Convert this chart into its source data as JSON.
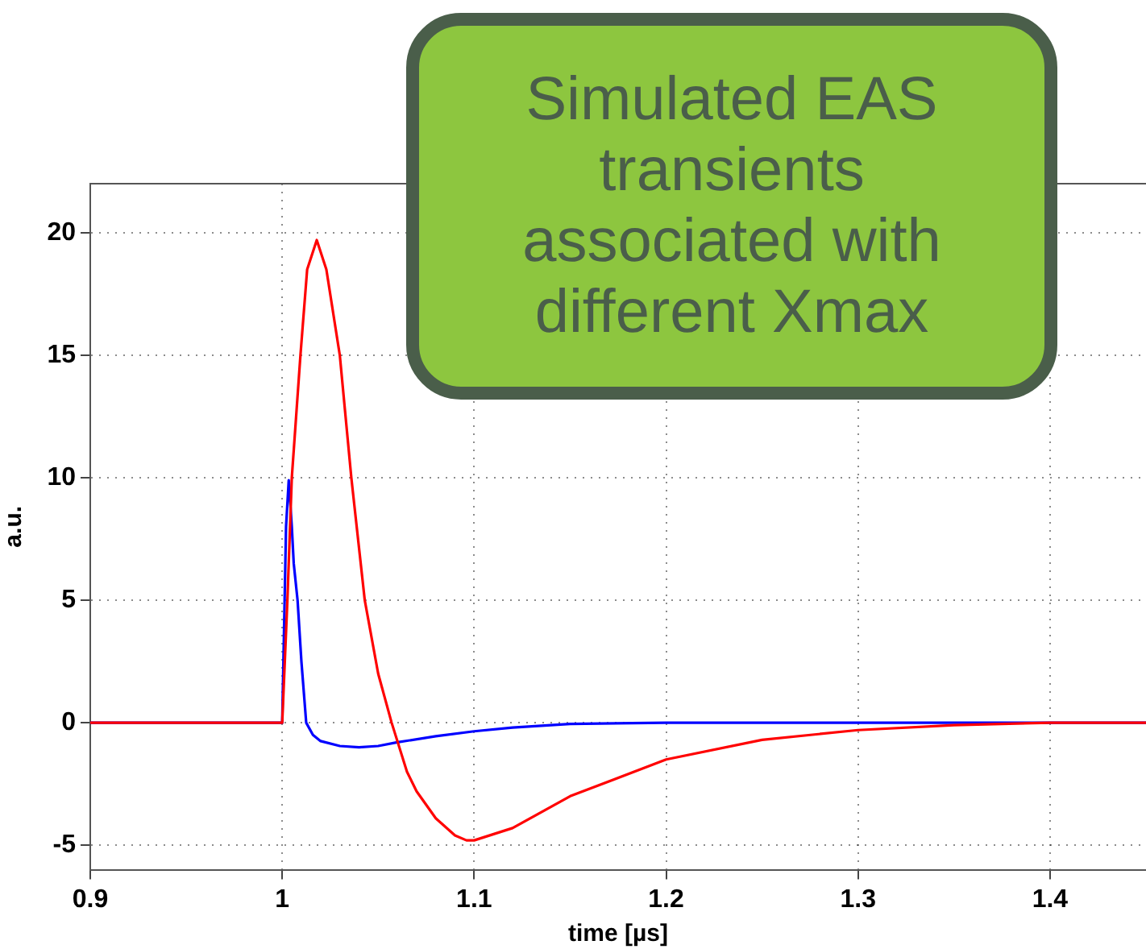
{
  "chart_data": {
    "type": "line",
    "xlabel": "time [µs]",
    "ylabel": "a.u.",
    "xlim": [
      0.9,
      1.45
    ],
    "xticks": [
      0.9,
      1,
      1.1,
      1.2,
      1.3,
      1.4
    ],
    "ylim": [
      -6,
      22
    ],
    "yticks": [
      -5,
      0,
      5,
      10,
      15,
      20
    ],
    "grid": true,
    "legend": false,
    "marker": "none",
    "line_style": "solid",
    "annotations": [
      "Simulated EAS transients associated with different Xmax"
    ],
    "series": [
      {
        "color": "#0000ff",
        "x": [
          0.9,
          1.0,
          1.001,
          1.002,
          1.0034,
          1.005,
          1.006,
          1.008,
          1.01,
          1.0125,
          1.016,
          1.02,
          1.03,
          1.04,
          1.05,
          1.06,
          1.08,
          1.1,
          1.12,
          1.15,
          1.2,
          1.3,
          1.45
        ],
        "values": [
          0,
          0,
          4,
          8,
          9.9,
          8,
          6.5,
          5,
          2.5,
          0,
          -0.5,
          -0.75,
          -0.95,
          -1,
          -0.95,
          -0.8,
          -0.55,
          -0.35,
          -0.2,
          -0.05,
          0,
          0,
          0
        ]
      },
      {
        "color": "#ff0000",
        "x": [
          0.9,
          1.0,
          1.0027,
          1.005,
          1.0095,
          1.013,
          1.018,
          1.023,
          1.03,
          1.036,
          1.043,
          1.05,
          1.057,
          1.065,
          1.07,
          1.08,
          1.09,
          1.096,
          1.1,
          1.12,
          1.15,
          1.2,
          1.25,
          1.3,
          1.35,
          1.4,
          1.45
        ],
        "values": [
          0,
          0,
          5,
          10,
          15,
          18.5,
          19.7,
          18.5,
          15,
          10,
          5,
          2,
          0,
          -2,
          -2.8,
          -3.9,
          -4.6,
          -4.8,
          -4.8,
          -4.3,
          -3,
          -1.5,
          -0.7,
          -0.3,
          -0.1,
          0,
          0
        ]
      }
    ]
  }
}
